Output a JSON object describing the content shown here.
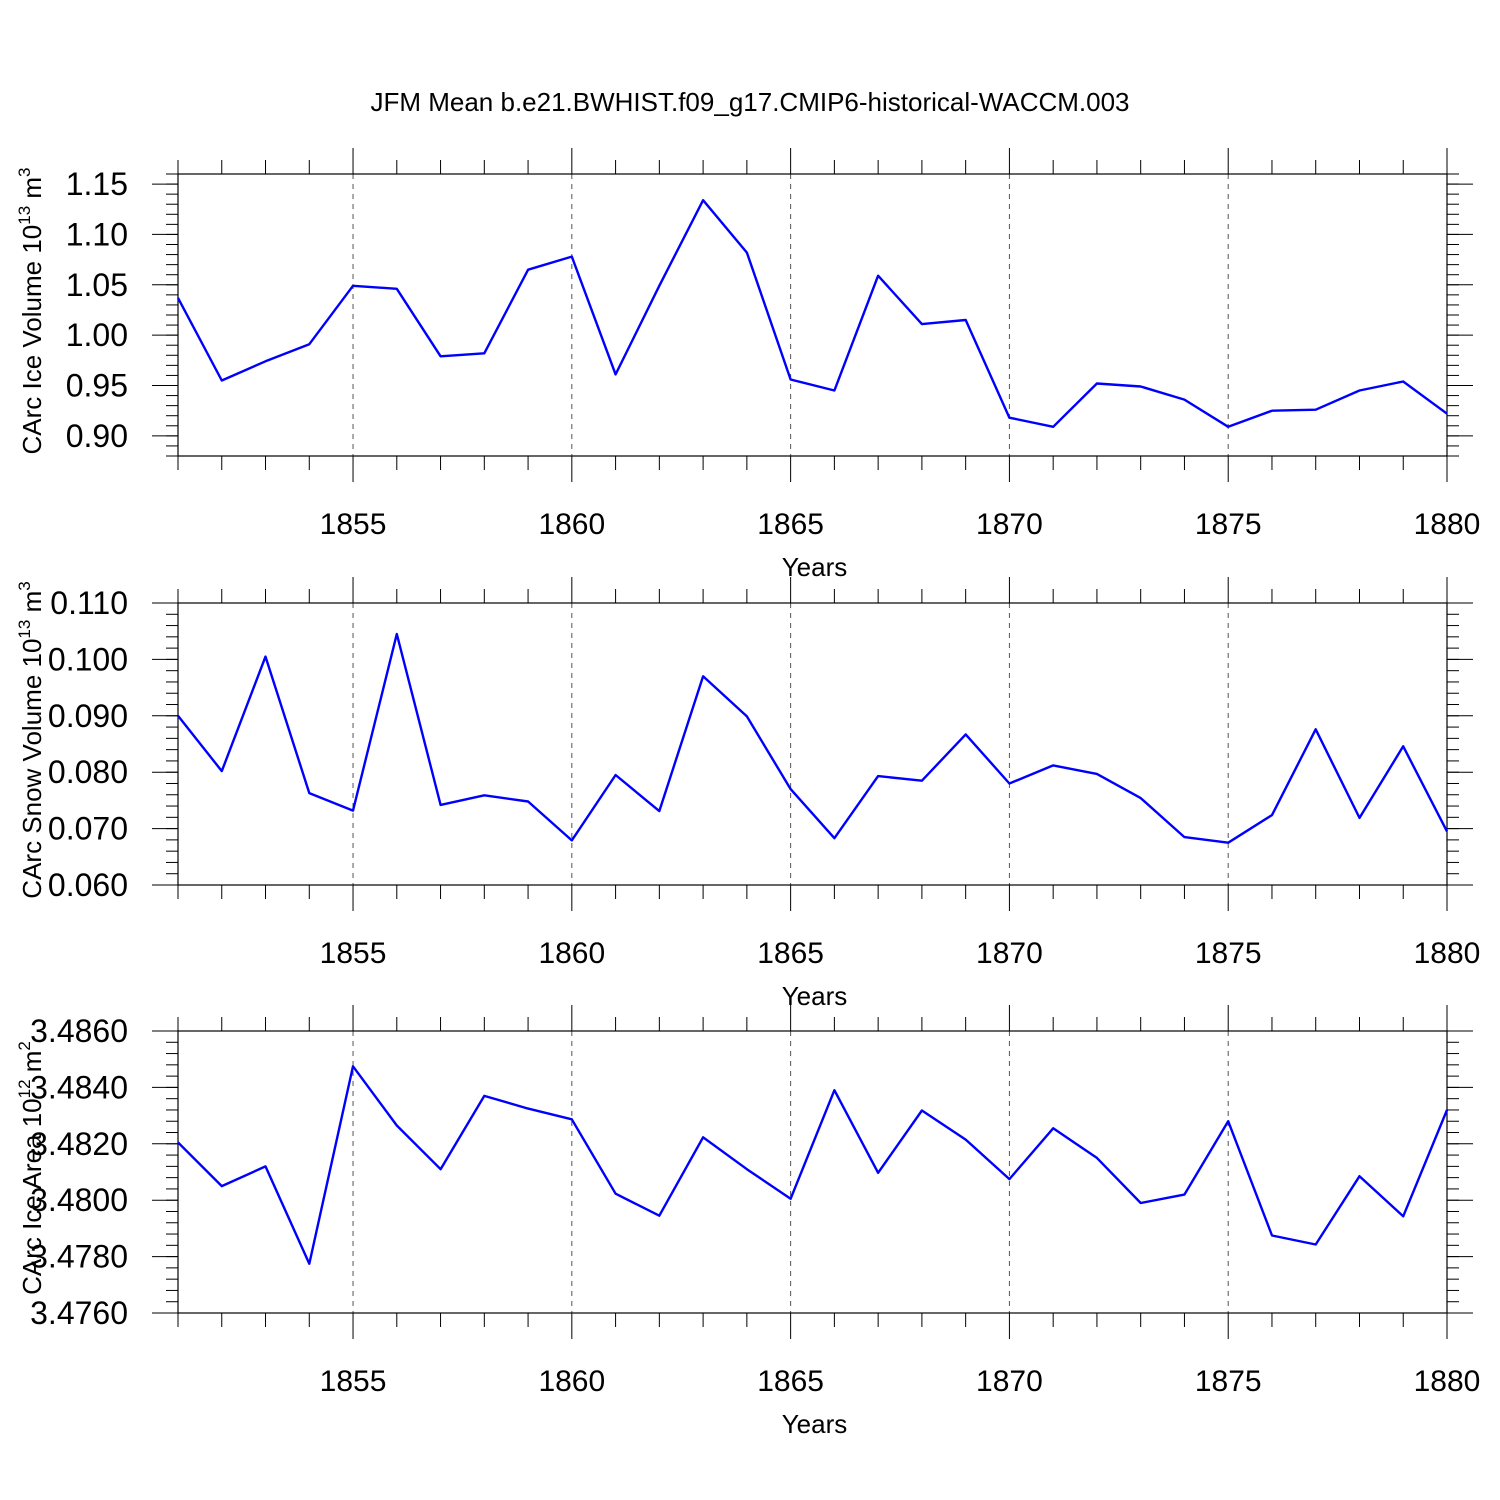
{
  "title": "JFM Mean b.e21.BWHIST.f09_g17.CMIP6-historical-WACCM.003",
  "colors": {
    "line": "#0000ff",
    "grid": "#555555"
  },
  "chart_data": [
    {
      "type": "line",
      "ylabel": "CArc Ice Volume 10",
      "ylabel_sup": "13",
      "ylabel_unit": " m",
      "ylabel_unit_sup": "3",
      "xlabel": "Years",
      "xlim": [
        1851,
        1880
      ],
      "ylim": [
        0.88,
        1.16
      ],
      "yticks": [
        0.9,
        0.95,
        1.0,
        1.05,
        1.1,
        1.15
      ],
      "ytick_labels": [
        "0.90",
        "0.95",
        "1.00",
        "1.05",
        "1.10",
        "1.15"
      ],
      "xticks": [
        1855,
        1860,
        1865,
        1870,
        1875,
        1880
      ],
      "xtick_labels": [
        "1855",
        "1860",
        "1865",
        "1870",
        "1875",
        "1880"
      ],
      "grid": "vertical dashed at major x ticks",
      "x": [
        1851,
        1852,
        1853,
        1854,
        1855,
        1856,
        1857,
        1858,
        1859,
        1860,
        1861,
        1862,
        1863,
        1864,
        1865,
        1866,
        1867,
        1868,
        1869,
        1870,
        1871,
        1872,
        1873,
        1874,
        1875,
        1876,
        1877,
        1878,
        1879,
        1880
      ],
      "series": [
        {
          "values": [
            1.037,
            0.955,
            0.974,
            0.991,
            1.049,
            1.046,
            0.979,
            0.982,
            1.065,
            1.078,
            0.961,
            1.049,
            1.134,
            1.082,
            0.956,
            0.945,
            1.059,
            1.011,
            1.015,
            0.918,
            0.909,
            0.952,
            0.949,
            0.936,
            0.909,
            0.925,
            0.926,
            0.945,
            0.954,
            0.922
          ]
        }
      ]
    },
    {
      "type": "line",
      "ylabel": "CArc Snow Volume 10",
      "ylabel_sup": "13",
      "ylabel_unit": " m",
      "ylabel_unit_sup": "3",
      "xlabel": "Years",
      "xlim": [
        1851,
        1880
      ],
      "ylim": [
        0.06,
        0.11
      ],
      "yticks": [
        0.06,
        0.07,
        0.08,
        0.09,
        0.1,
        0.11
      ],
      "ytick_labels": [
        "0.060",
        "0.070",
        "0.080",
        "0.090",
        "0.100",
        "0.110"
      ],
      "xticks": [
        1855,
        1860,
        1865,
        1870,
        1875,
        1880
      ],
      "xtick_labels": [
        "1855",
        "1860",
        "1865",
        "1870",
        "1875",
        "1880"
      ],
      "grid": "vertical dashed at major x ticks",
      "x": [
        1851,
        1852,
        1853,
        1854,
        1855,
        1856,
        1857,
        1858,
        1859,
        1860,
        1861,
        1862,
        1863,
        1864,
        1865,
        1866,
        1867,
        1868,
        1869,
        1870,
        1871,
        1872,
        1873,
        1874,
        1875,
        1876,
        1877,
        1878,
        1879,
        1880
      ],
      "series": [
        {
          "values": [
            0.09,
            0.0802,
            0.1005,
            0.0763,
            0.0732,
            0.1045,
            0.0742,
            0.0759,
            0.0748,
            0.0679,
            0.0795,
            0.0731,
            0.097,
            0.0899,
            0.077,
            0.0683,
            0.0793,
            0.0785,
            0.0867,
            0.078,
            0.0812,
            0.0797,
            0.0754,
            0.0685,
            0.0675,
            0.0724,
            0.0876,
            0.0719,
            0.0846,
            0.0695
          ]
        }
      ]
    },
    {
      "type": "line",
      "ylabel": "CArc Ice Area 10",
      "ylabel_sup": "12",
      "ylabel_unit": " m",
      "ylabel_unit_sup": "2",
      "xlabel": "Years",
      "xlim": [
        1851,
        1880
      ],
      "ylim": [
        3.476,
        3.486
      ],
      "yticks": [
        3.476,
        3.478,
        3.48,
        3.482,
        3.484,
        3.486
      ],
      "ytick_labels": [
        "3.4760",
        "3.4780",
        "3.4800",
        "3.4820",
        "3.4840",
        "3.4860"
      ],
      "xticks": [
        1855,
        1860,
        1865,
        1870,
        1875,
        1880
      ],
      "xtick_labels": [
        "1855",
        "1860",
        "1865",
        "1870",
        "1875",
        "1880"
      ],
      "grid": "vertical dashed at major x ticks",
      "x": [
        1851,
        1852,
        1853,
        1854,
        1855,
        1856,
        1857,
        1858,
        1859,
        1860,
        1861,
        1862,
        1863,
        1864,
        1865,
        1866,
        1867,
        1868,
        1869,
        1870,
        1871,
        1872,
        1873,
        1874,
        1875,
        1876,
        1877,
        1878,
        1879,
        1880
      ],
      "series": [
        {
          "values": [
            3.48205,
            3.4805,
            3.4812,
            3.47775,
            3.48475,
            3.48265,
            3.4811,
            3.4837,
            3.48325,
            3.48287,
            3.48023,
            3.47945,
            3.48223,
            3.4811,
            3.48005,
            3.4839,
            3.48097,
            3.48318,
            3.48215,
            3.48075,
            3.48255,
            3.4815,
            3.4799,
            3.4802,
            3.4828,
            3.47875,
            3.47843,
            3.48085,
            3.47943,
            3.4832
          ]
        }
      ]
    }
  ]
}
